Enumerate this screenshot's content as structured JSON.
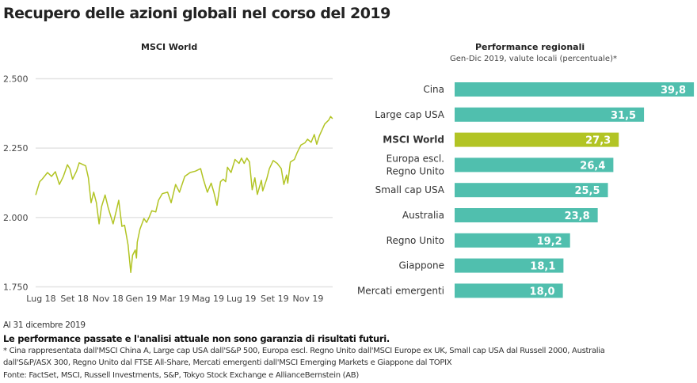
{
  "title": "Recupero delle azioni globali nel corso del 2019",
  "chart_data": [
    {
      "type": "line",
      "title": "MSCI World",
      "xlabel": "",
      "ylabel": "",
      "ylim": [
        1750,
        2500
      ],
      "yticks": [
        "2.500",
        "2.250",
        "2.000",
        "1.750"
      ],
      "ytick_values": [
        2500,
        2250,
        2000,
        1750
      ],
      "xticks": [
        "Lug 18",
        "Set 18",
        "Nov 18",
        "Gen 19",
        "Mar 19",
        "Mag 19",
        "Lug 19",
        "Set 19",
        "Nov 19"
      ],
      "x_unit": "months since Jul 2018",
      "xlim": [
        -0.33,
        17.5
      ],
      "series": [
        {
          "name": "MSCI World",
          "color": "#b2c424",
          "x": [
            -0.33,
            -0.09,
            0.06,
            0.38,
            0.62,
            0.85,
            1.09,
            1.33,
            1.57,
            1.72,
            1.88,
            2.12,
            2.28,
            2.67,
            2.83,
            2.99,
            3.15,
            3.31,
            3.47,
            3.62,
            3.83,
            4.02,
            4.31,
            4.5,
            4.65,
            4.84,
            5.0,
            5.21,
            5.37,
            5.48,
            5.64,
            5.71,
            5.76,
            5.92,
            6.16,
            6.32,
            6.47,
            6.63,
            6.87,
            7.03,
            7.26,
            7.58,
            7.79,
            8.06,
            8.29,
            8.61,
            8.93,
            9.24,
            9.56,
            9.72,
            9.96,
            10.19,
            10.35,
            10.54,
            10.75,
            10.91,
            11.06,
            11.17,
            11.38,
            11.62,
            11.86,
            12.01,
            12.17,
            12.33,
            12.49,
            12.65,
            12.81,
            12.96,
            13.2,
            13.28,
            13.52,
            13.68,
            13.91,
            14.15,
            14.39,
            14.55,
            14.71,
            14.78,
            14.94,
            15.18,
            15.34,
            15.57,
            15.81,
            15.97,
            16.18,
            16.37,
            16.52,
            16.68,
            17.0,
            17.24,
            17.35,
            17.47
          ],
          "y": [
            2081,
            2129,
            2138,
            2162,
            2148,
            2165,
            2119,
            2148,
            2190,
            2176,
            2138,
            2167,
            2197,
            2186,
            2143,
            2053,
            2091,
            2053,
            1977,
            2039,
            2081,
            2034,
            1977,
            2024,
            2062,
            1968,
            1972,
            1901,
            1802,
            1864,
            1883,
            1854,
            1911,
            1958,
            1996,
            1982,
            2001,
            2024,
            2020,
            2062,
            2086,
            2091,
            2053,
            2119,
            2091,
            2148,
            2162,
            2167,
            2176,
            2138,
            2091,
            2124,
            2091,
            2044,
            2129,
            2138,
            2129,
            2181,
            2162,
            2209,
            2195,
            2214,
            2195,
            2214,
            2200,
            2100,
            2143,
            2083,
            2134,
            2096,
            2138,
            2176,
            2205,
            2195,
            2176,
            2119,
            2153,
            2124,
            2200,
            2209,
            2233,
            2261,
            2269,
            2282,
            2271,
            2299,
            2264,
            2295,
            2337,
            2351,
            2364,
            2356
          ]
        }
      ],
      "grid": true
    },
    {
      "type": "bar",
      "orientation": "horizontal",
      "title": "Performance regionali",
      "subtitle": "Gen-Dic 2019, valute locali (percentuale)*",
      "categories": [
        "Cina",
        "Large cap USA",
        "MSCI World",
        "Europa escl. Regno Unito",
        "Small cap USA",
        "Australia",
        "Regno Unito",
        "Giappone",
        "Mercati emergenti"
      ],
      "category_lines": [
        [
          "Cina"
        ],
        [
          "Large cap USA"
        ],
        [
          "MSCI World"
        ],
        [
          "Europa escl.",
          "Regno Unito"
        ],
        [
          "Small cap USA"
        ],
        [
          "Australia"
        ],
        [
          "Regno Unito"
        ],
        [
          "Giappone"
        ],
        [
          "Mercati emergenti"
        ]
      ],
      "values": [
        39.8,
        31.5,
        27.3,
        26.4,
        25.5,
        23.8,
        19.2,
        18.1,
        18.0
      ],
      "labels": [
        "39,8",
        "31,5",
        "27,3",
        "26,4",
        "25,5",
        "23,8",
        "19,2",
        "18,1",
        "18,0"
      ],
      "highlight": "MSCI World",
      "colors": {
        "default": "#50bfae",
        "highlight": "#b2c424"
      }
    }
  ],
  "footer": {
    "date": "Al 31 dicembre 2019",
    "disclaimer": "Le performance passate e l'analisi attuale non sono garanzia di risultati futuri.",
    "note_line1": "* Cina rappresentata dall'MSCI China A, Large cap USA dall'S&P 500, Europa escl. Regno Unito dall'MSCI Europe ex UK, Small cap USA dal Russell 2000, Australia",
    "note_line2": "dall'S&P/ASX 300, Regno Unito dal FTSE All-Share, Mercati emergenti dall'MSCI Emerging Markets e Giappone dal TOPIX",
    "source": "Fonte: FactSet, MSCI, Russell Investments, S&P, Tokyo Stock Exchange e AllianceBernstein (AB)"
  }
}
